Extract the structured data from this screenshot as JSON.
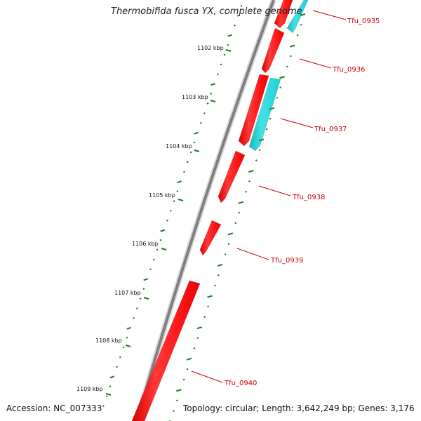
{
  "title": "Thermobifida fusca YX, complete genome",
  "footer": {
    "accession": "Accession: NC_007333",
    "summary": "Topology: circular; Length: 3,642,249 bp; Genes: 3,176"
  },
  "colors": {
    "forward_gene": "#ff1414",
    "reverse_gene": "#22d2d6",
    "backbone": "#808080",
    "ticks": "#1f7a1f",
    "label": "#cc0000"
  },
  "scale_labels": [
    "1102 kbp",
    "1103 kbp",
    "1104 kbp",
    "1105 kbp",
    "1106 kbp",
    "1107 kbp",
    "1108 kbp",
    "1109 kbp"
  ],
  "genes": [
    {
      "label": "Tfu_0935",
      "strand": "both"
    },
    {
      "label": "Tfu_0936",
      "strand": "forward"
    },
    {
      "label": "Tfu_0937",
      "strand": "both"
    },
    {
      "label": "Tfu_0938",
      "strand": "forward"
    },
    {
      "label": "Tfu_0939",
      "strand": "forward"
    },
    {
      "label": "Tfu_0940",
      "strand": "forward"
    }
  ]
}
